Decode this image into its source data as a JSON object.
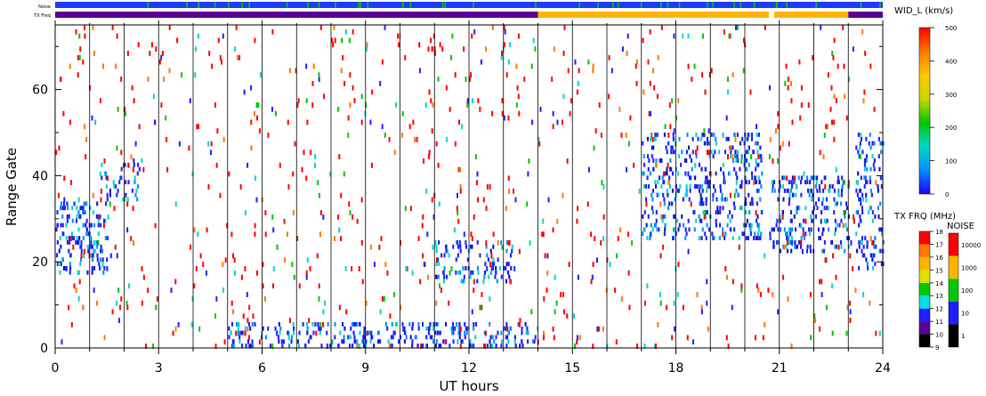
{
  "chart_data": {
    "type": "heatmap",
    "xlabel": "UT hours",
    "ylabel": "Range Gate",
    "xlim": [
      0,
      24
    ],
    "ylim": [
      0,
      75
    ],
    "xticks": [
      0,
      3,
      6,
      9,
      12,
      15,
      18,
      21,
      24
    ],
    "yticks": [
      0,
      20,
      40,
      60
    ],
    "hour_lines": [
      1,
      2,
      3,
      4,
      5,
      6,
      7,
      8,
      9,
      10,
      11,
      12,
      13,
      14,
      15,
      16,
      17,
      18,
      19,
      20,
      21,
      22,
      23
    ],
    "grid": false,
    "header_bars": {
      "noise_label": "Noise",
      "txfreq_label": "TX Freq",
      "noise_base_color": "#1e3cff",
      "noise_marks_color": "#00c800",
      "txfreq_segments": [
        {
          "start": 0,
          "end": 14.0,
          "color": "#5a0096"
        },
        {
          "start": 14.0,
          "end": 20.7,
          "color": "#ffb400"
        },
        {
          "start": 20.7,
          "end": 20.85,
          "color": "#ffffff"
        },
        {
          "start": 20.85,
          "end": 23.0,
          "color": "#ffb400"
        },
        {
          "start": 23.0,
          "end": 24.0,
          "color": "#5a0096"
        }
      ]
    },
    "velocity_colorbar": {
      "title": "WID_L (km/s)",
      "range": [
        0,
        500
      ],
      "ticks": [
        0,
        100,
        200,
        300,
        400,
        500
      ],
      "stops": [
        "#1e00ff",
        "#0090ff",
        "#00d8c8",
        "#00c800",
        "#c8d800",
        "#ffc800",
        "#ff7800",
        "#ff0000"
      ]
    },
    "txfreq_colorbar": {
      "title": "TX FRQ (MHz)",
      "values": [
        9,
        10,
        11,
        12,
        13,
        14,
        15,
        16,
        17,
        18
      ],
      "colors": [
        "#000000",
        "#5a0096",
        "#1e1eff",
        "#00e0e0",
        "#00c800",
        "#e0e000",
        "#ffb400",
        "#ff7800",
        "#ff0000"
      ]
    },
    "noise_colorbar": {
      "title": "NOISE",
      "values": [
        "1",
        "10",
        "100",
        "1000",
        "10000"
      ],
      "colors": [
        "#000000",
        "#1e1eff",
        "#00c800",
        "#ffb400",
        "#ff0000"
      ]
    },
    "scatter_regions": [
      {
        "name": "dense blue patch",
        "t": [
          0,
          1.5
        ],
        "g": [
          17,
          34
        ],
        "density": 0.55
      },
      {
        "name": "early-evening patch",
        "t": [
          1.3,
          2.5
        ],
        "g": [
          34,
          44
        ],
        "density": 0.3
      },
      {
        "name": "near-range band",
        "t": [
          5,
          14
        ],
        "g": [
          0,
          6
        ],
        "density": 0.5
      },
      {
        "name": "midday echo",
        "t": [
          11,
          13.3
        ],
        "g": [
          15,
          25
        ],
        "density": 0.4
      },
      {
        "name": "night patch A",
        "t": [
          17,
          20.5
        ],
        "g": [
          25,
          50
        ],
        "density": 0.45
      },
      {
        "name": "night patch B",
        "t": [
          20.7,
          23
        ],
        "g": [
          22,
          40
        ],
        "density": 0.5
      },
      {
        "name": "late patch",
        "t": [
          23.2,
          24
        ],
        "g": [
          18,
          50
        ],
        "density": 0.45
      }
    ]
  }
}
